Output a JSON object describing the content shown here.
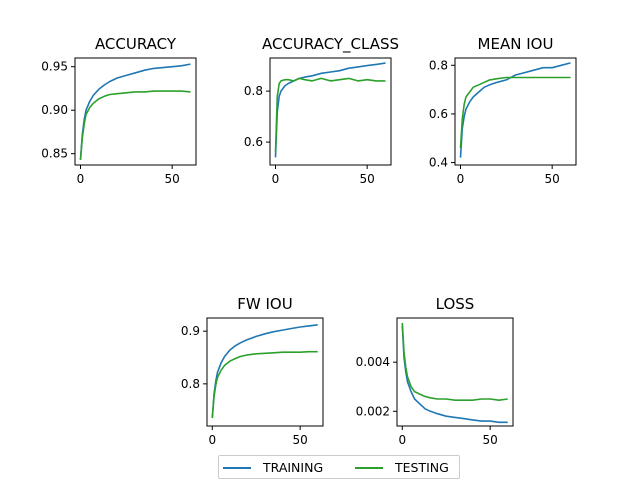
{
  "colors": {
    "training": "#1f77b4",
    "testing": "#2ca02c"
  },
  "legend": {
    "training_label": "TRAINING",
    "testing_label": "TESTING"
  },
  "chart_data": [
    {
      "type": "line",
      "title": "ACCURACY",
      "xlim": [
        -3,
        63
      ],
      "ylim": [
        0.837,
        0.96
      ],
      "xticks": [
        0,
        50
      ],
      "yticks": [
        0.85,
        0.9,
        0.95
      ],
      "ytick_labels": [
        "0.85",
        "0.90",
        "0.95"
      ],
      "series": [
        {
          "name": "TRAINING",
          "x": [
            0,
            1,
            2,
            3,
            5,
            7,
            10,
            13,
            16,
            20,
            25,
            30,
            35,
            40,
            45,
            50,
            55,
            60
          ],
          "y": [
            0.843,
            0.872,
            0.889,
            0.9,
            0.91,
            0.917,
            0.924,
            0.929,
            0.933,
            0.937,
            0.94,
            0.943,
            0.946,
            0.948,
            0.949,
            0.95,
            0.951,
            0.953
          ]
        },
        {
          "name": "TESTING",
          "x": [
            0,
            1,
            2,
            3,
            5,
            7,
            10,
            13,
            16,
            20,
            25,
            30,
            35,
            40,
            45,
            50,
            55,
            60
          ],
          "y": [
            0.843,
            0.868,
            0.884,
            0.895,
            0.903,
            0.908,
            0.913,
            0.916,
            0.918,
            0.919,
            0.92,
            0.921,
            0.921,
            0.922,
            0.922,
            0.922,
            0.922,
            0.921
          ]
        }
      ]
    },
    {
      "type": "line",
      "title": "ACCURACY_CLASS",
      "xlim": [
        -3,
        63
      ],
      "ylim": [
        0.51,
        0.93
      ],
      "xticks": [
        0,
        50
      ],
      "yticks": [
        0.6,
        0.8
      ],
      "ytick_labels": [
        "0.6",
        "0.8"
      ],
      "series": [
        {
          "name": "TRAINING",
          "x": [
            0,
            1,
            2,
            3,
            5,
            7,
            10,
            13,
            16,
            20,
            25,
            30,
            35,
            40,
            45,
            50,
            55,
            60
          ],
          "y": [
            0.54,
            0.72,
            0.78,
            0.8,
            0.82,
            0.83,
            0.84,
            0.85,
            0.855,
            0.86,
            0.87,
            0.875,
            0.88,
            0.89,
            0.895,
            0.9,
            0.905,
            0.91
          ]
        },
        {
          "name": "TESTING",
          "x": [
            0,
            1,
            2,
            3,
            5,
            7,
            10,
            13,
            16,
            20,
            25,
            30,
            35,
            40,
            45,
            50,
            55,
            60
          ],
          "y": [
            0.56,
            0.78,
            0.83,
            0.84,
            0.845,
            0.845,
            0.84,
            0.85,
            0.845,
            0.84,
            0.85,
            0.84,
            0.845,
            0.85,
            0.84,
            0.845,
            0.84,
            0.84
          ]
        }
      ]
    },
    {
      "type": "line",
      "title": "MEAN IOU",
      "xlim": [
        -3,
        63
      ],
      "ylim": [
        0.39,
        0.83
      ],
      "xticks": [
        0,
        50
      ],
      "yticks": [
        0.4,
        0.6,
        0.8
      ],
      "ytick_labels": [
        "0.4",
        "0.6",
        "0.8"
      ],
      "series": [
        {
          "name": "TRAINING",
          "x": [
            0,
            1,
            2,
            3,
            5,
            7,
            10,
            13,
            16,
            20,
            25,
            30,
            35,
            40,
            45,
            50,
            55,
            60
          ],
          "y": [
            0.42,
            0.54,
            0.59,
            0.62,
            0.65,
            0.67,
            0.69,
            0.71,
            0.72,
            0.73,
            0.74,
            0.76,
            0.77,
            0.78,
            0.79,
            0.79,
            0.8,
            0.81
          ]
        },
        {
          "name": "TESTING",
          "x": [
            0,
            1,
            2,
            3,
            5,
            7,
            10,
            13,
            16,
            20,
            25,
            30,
            35,
            40,
            45,
            50,
            55,
            60
          ],
          "y": [
            0.46,
            0.58,
            0.64,
            0.67,
            0.69,
            0.71,
            0.72,
            0.73,
            0.74,
            0.745,
            0.75,
            0.75,
            0.75,
            0.75,
            0.75,
            0.75,
            0.75,
            0.75
          ]
        }
      ]
    },
    {
      "type": "line",
      "title": "FW IOU",
      "xlim": [
        -3,
        63
      ],
      "ylim": [
        0.72,
        0.925
      ],
      "xticks": [
        0,
        50
      ],
      "yticks": [
        0.8,
        0.9
      ],
      "ytick_labels": [
        "0.8",
        "0.9"
      ],
      "series": [
        {
          "name": "TRAINING",
          "x": [
            0,
            1,
            2,
            3,
            5,
            7,
            10,
            13,
            16,
            20,
            25,
            30,
            35,
            40,
            45,
            50,
            55,
            60
          ],
          "y": [
            0.735,
            0.78,
            0.805,
            0.822,
            0.84,
            0.852,
            0.864,
            0.872,
            0.878,
            0.884,
            0.89,
            0.895,
            0.899,
            0.902,
            0.905,
            0.908,
            0.91,
            0.912
          ]
        },
        {
          "name": "TESTING",
          "x": [
            0,
            1,
            2,
            3,
            5,
            7,
            10,
            13,
            16,
            20,
            25,
            30,
            35,
            40,
            45,
            50,
            55,
            60
          ],
          "y": [
            0.735,
            0.775,
            0.798,
            0.812,
            0.826,
            0.835,
            0.843,
            0.848,
            0.852,
            0.855,
            0.857,
            0.858,
            0.859,
            0.86,
            0.86,
            0.86,
            0.861,
            0.861
          ]
        }
      ]
    },
    {
      "type": "line",
      "title": "LOSS",
      "xlim": [
        -3,
        63
      ],
      "ylim": [
        0.0014,
        0.0058
      ],
      "xticks": [
        0,
        50
      ],
      "yticks": [
        0.002,
        0.004
      ],
      "ytick_labels": [
        "0.002",
        "0.004"
      ],
      "series": [
        {
          "name": "TRAINING",
          "x": [
            0,
            1,
            2,
            3,
            5,
            7,
            10,
            13,
            16,
            20,
            25,
            30,
            35,
            40,
            45,
            50,
            55,
            60
          ],
          "y": [
            0.0055,
            0.0042,
            0.0036,
            0.0032,
            0.0028,
            0.0025,
            0.0023,
            0.0021,
            0.002,
            0.0019,
            0.0018,
            0.00175,
            0.0017,
            0.00165,
            0.0016,
            0.0016,
            0.00155,
            0.00155
          ]
        },
        {
          "name": "TESTING",
          "x": [
            0,
            1,
            2,
            3,
            5,
            7,
            10,
            13,
            16,
            20,
            25,
            30,
            35,
            40,
            45,
            50,
            55,
            60
          ],
          "y": [
            0.0056,
            0.0044,
            0.0038,
            0.0034,
            0.003,
            0.0028,
            0.0027,
            0.0026,
            0.00255,
            0.0025,
            0.0025,
            0.00245,
            0.00245,
            0.00245,
            0.0025,
            0.0025,
            0.00245,
            0.0025
          ]
        }
      ]
    }
  ]
}
